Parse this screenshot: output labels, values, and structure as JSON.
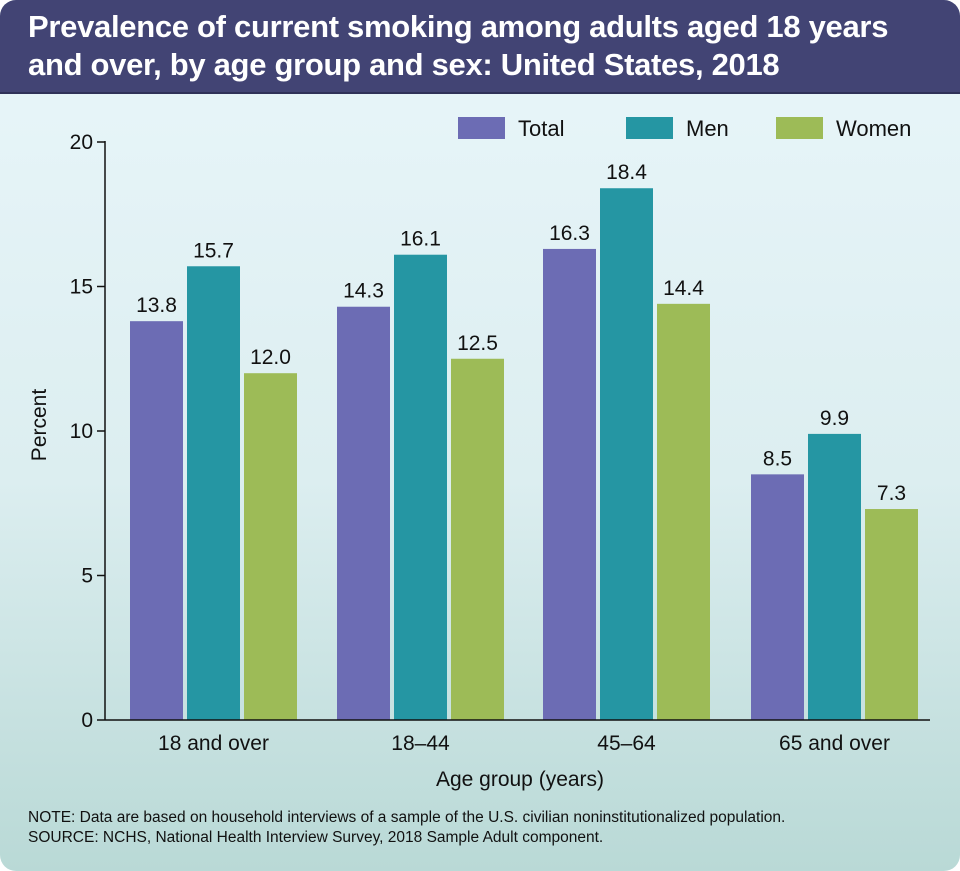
{
  "colors": {
    "header_bg": "#424474",
    "total": "#6c6cb4",
    "men": "#2596a3",
    "women": "#9dbb57"
  },
  "chart_data": {
    "type": "bar",
    "title": "Prevalence of current smoking among adults aged 18 years and over, by age group and sex: United States, 2018",
    "xlabel": "Age group (years)",
    "ylabel": "Percent",
    "ylim": [
      0,
      20
    ],
    "yticks": [
      0,
      5,
      10,
      15,
      20
    ],
    "grid": false,
    "legend_position": "top-right",
    "categories": [
      "18 and over",
      "18–44",
      "45–64",
      "65 and over"
    ],
    "series": [
      {
        "name": "Total",
        "color": "#6c6cb4",
        "values": [
          13.8,
          14.3,
          16.3,
          8.5
        ],
        "labels": [
          "13.8",
          "14.3",
          "16.3",
          "8.5"
        ]
      },
      {
        "name": "Men",
        "color": "#2596a3",
        "values": [
          15.7,
          16.1,
          18.4,
          9.9
        ],
        "labels": [
          "15.7",
          "16.1",
          "18.4",
          "9.9"
        ]
      },
      {
        "name": "Women",
        "color": "#9dbb57",
        "values": [
          12.0,
          12.5,
          14.4,
          7.3
        ],
        "labels": [
          "12.0",
          "12.5",
          "14.4",
          "7.3"
        ]
      }
    ]
  },
  "notes": {
    "note": "NOTE: Data are based on household interviews of a sample of the U.S. civilian noninstitutionalized population.",
    "source": "SOURCE: NCHS, National Health Interview Survey, 2018 Sample Adult component."
  }
}
